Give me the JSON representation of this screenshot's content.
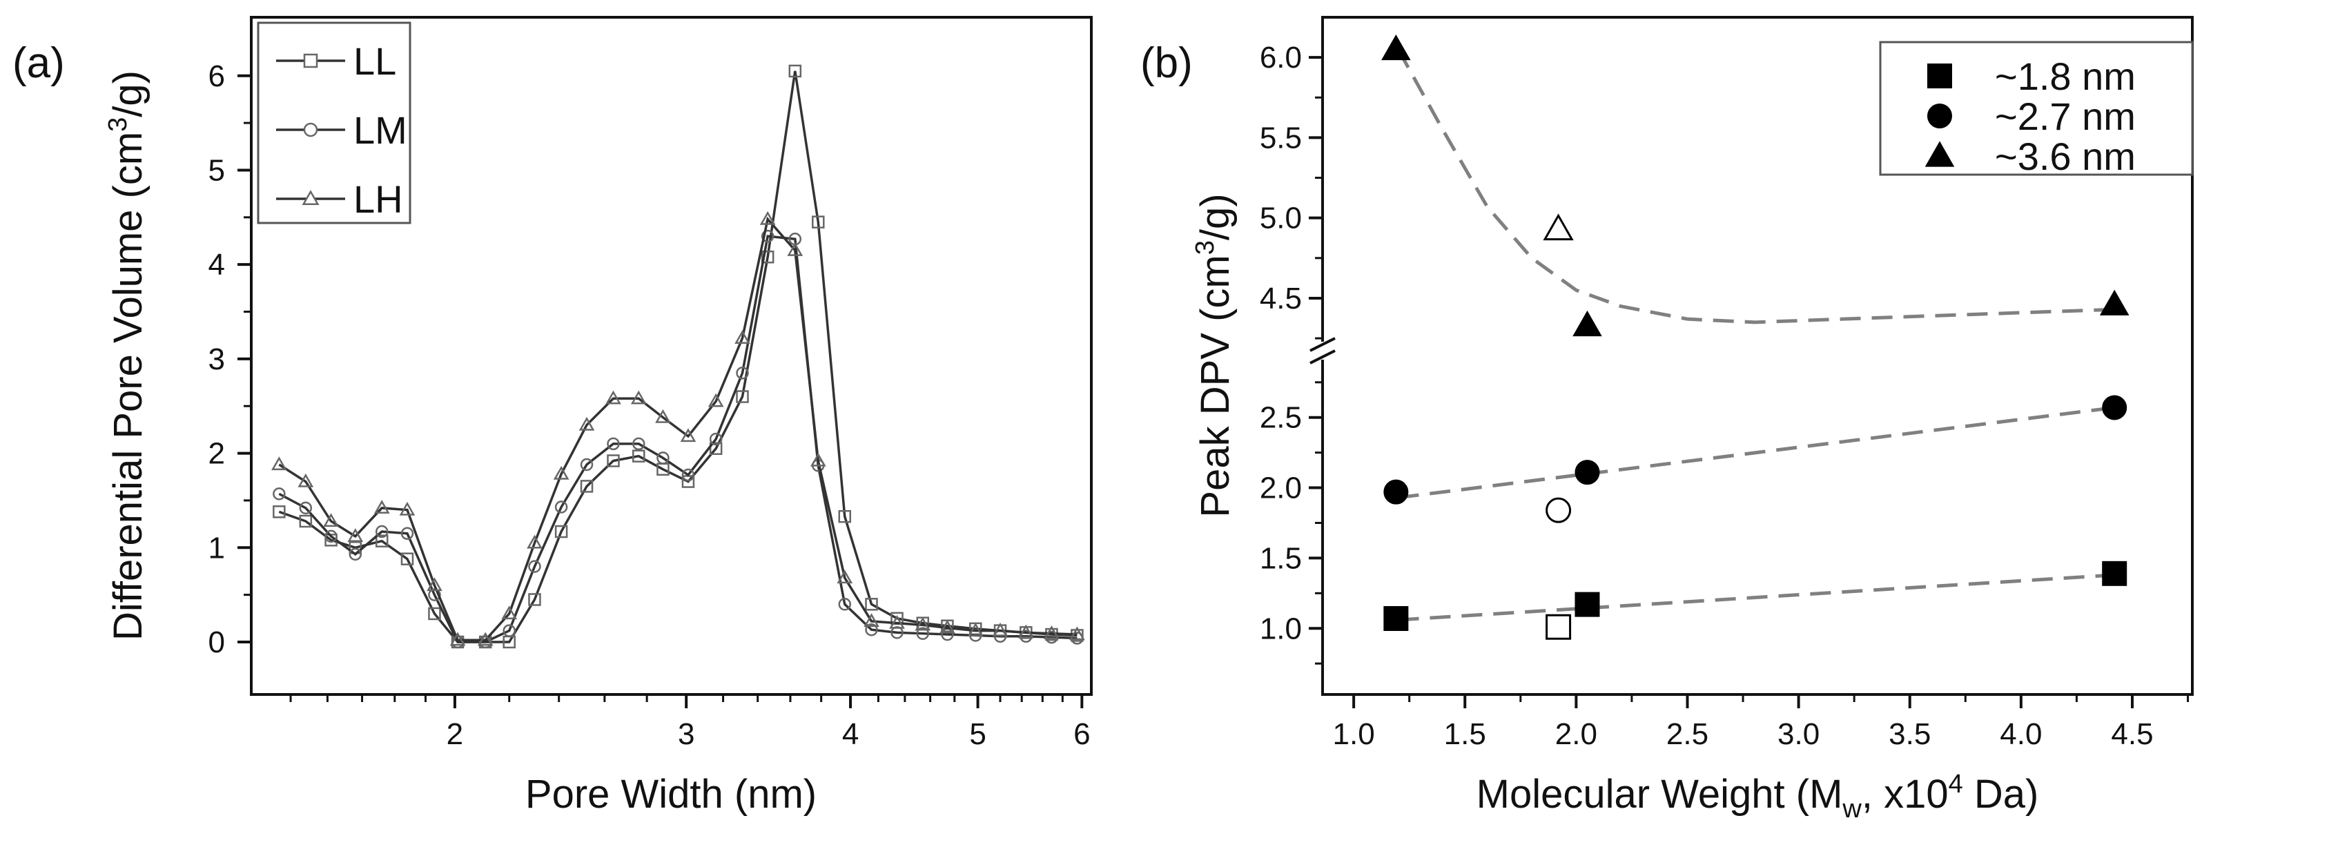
{
  "chart_data": [
    {
      "panel_label": "(a)",
      "type": "line",
      "xlabel": "Pore Width (nm)",
      "ylabel": "Differential Pore Volume (cm3/g)",
      "ylabel_parts": {
        "main": "Differential Pore Volume (cm",
        "sup": "3",
        "tail": "/g)"
      },
      "x_scale": "log",
      "xlim": [
        1.4,
        6.1
      ],
      "ylim": [
        -0.556,
        6.62
      ],
      "xticks": [
        2,
        3,
        4,
        5,
        6
      ],
      "xtick_labels": [
        "2",
        "3",
        "4",
        "5",
        "6"
      ],
      "yticks": [
        0,
        1,
        2,
        3,
        4,
        5,
        6
      ],
      "ytick_labels": [
        "0",
        "1",
        "2",
        "3",
        "4",
        "5",
        "6"
      ],
      "legend_position": "top-left",
      "x": [
        1.47,
        1.54,
        1.61,
        1.68,
        1.76,
        1.84,
        1.93,
        2.01,
        2.11,
        2.2,
        2.3,
        2.41,
        2.52,
        2.64,
        2.76,
        2.88,
        3.01,
        3.16,
        3.31,
        3.46,
        3.63,
        3.78,
        3.96,
        4.15,
        4.34,
        4.54,
        4.74,
        4.98,
        5.2,
        5.44,
        5.69,
        5.95
      ],
      "series": [
        {
          "name": "LL",
          "marker": "open-square",
          "values": [
            1.38,
            1.28,
            1.08,
            1.0,
            1.07,
            0.88,
            0.3,
            0,
            0,
            0,
            0.45,
            1.17,
            1.65,
            1.92,
            1.97,
            1.83,
            1.7,
            2.05,
            2.6,
            4.08,
            6.05,
            4.45,
            1.33,
            0.4,
            0.25,
            0.2,
            0.17,
            0.14,
            0.12,
            0.1,
            0.08,
            0.07
          ]
        },
        {
          "name": "LM",
          "marker": "open-circle",
          "values": [
            1.57,
            1.42,
            1.12,
            0.93,
            1.17,
            1.15,
            0.5,
            0,
            0,
            0.12,
            0.8,
            1.43,
            1.88,
            2.1,
            2.1,
            1.95,
            1.77,
            2.15,
            2.85,
            4.3,
            4.27,
            1.87,
            0.4,
            0.13,
            0.1,
            0.09,
            0.08,
            0.07,
            0.06,
            0.06,
            0.05,
            0.04
          ]
        },
        {
          "name": "LH",
          "marker": "open-triangle",
          "values": [
            1.88,
            1.7,
            1.28,
            1.12,
            1.42,
            1.4,
            0.6,
            0.02,
            0.02,
            0.3,
            1.05,
            1.78,
            2.3,
            2.58,
            2.58,
            2.38,
            2.18,
            2.55,
            3.22,
            4.48,
            4.15,
            1.92,
            0.68,
            0.22,
            0.2,
            0.18,
            0.15,
            0.12,
            0.12,
            0.1,
            0.09,
            0.08
          ]
        }
      ],
      "line_color": "#333333",
      "marker_color": "#666666"
    },
    {
      "panel_label": "(b)",
      "type": "scatter",
      "xlabel": "Molecular Weight (Mw, x104 Da)",
      "xlabel_parts": {
        "a": "Molecular Weight (M",
        "sub": "w",
        "b": ", x10",
        "sup": "4",
        "c": " Da)"
      },
      "ylabel": "Peak DPV (cm3/g)",
      "ylabel_parts": {
        "main": "Peak DPV (cm",
        "sup": "3",
        "tail": "/g)"
      },
      "xlim": [
        0.86,
        4.77
      ],
      "y_axis_break": true,
      "ylim_lower": [
        0.53,
        2.96
      ],
      "ylim_upper": [
        4.16,
        6.25
      ],
      "xticks": [
        1.0,
        1.5,
        2.0,
        2.5,
        3.0,
        3.5,
        4.0,
        4.5
      ],
      "xtick_labels": [
        "1.0",
        "1.5",
        "2.0",
        "2.5",
        "3.0",
        "3.5",
        "4.0",
        "4.5"
      ],
      "yticks_lower": [
        1.0,
        1.5,
        2.0,
        2.5
      ],
      "ytick_labels_lower": [
        "1.0",
        "1.5",
        "2.0",
        "2.5"
      ],
      "yticks_upper": [
        4.5,
        5.0,
        5.5,
        6.0
      ],
      "ytick_labels_upper": [
        "4.5",
        "5.0",
        "5.5",
        "6.0"
      ],
      "legend_position": "top-right",
      "series": [
        {
          "name": "~1.8 nm",
          "marker": "filled-square",
          "points": [
            [
              1.19,
              1.07
            ],
            [
              2.05,
              1.17
            ],
            [
              4.42,
              1.39
            ]
          ],
          "open_points": [
            [
              1.92,
              1.01
            ]
          ],
          "fit": [
            [
              1.2,
              1.06
            ],
            [
              4.42,
              1.38
            ]
          ]
        },
        {
          "name": "~2.7 nm",
          "marker": "filled-circle",
          "points": [
            [
              1.19,
              1.97
            ],
            [
              2.05,
              2.11
            ],
            [
              4.42,
              2.57
            ]
          ],
          "open_points": [
            [
              1.92,
              1.84
            ]
          ],
          "fit": [
            [
              1.2,
              1.93
            ],
            [
              4.42,
              2.57
            ]
          ]
        },
        {
          "name": "~3.6 nm",
          "marker": "filled-triangle",
          "points": [
            [
              1.19,
              6.05
            ],
            [
              2.05,
              4.33
            ],
            [
              4.42,
              4.46
            ]
          ],
          "open_points": [
            [
              1.92,
              4.93
            ]
          ],
          "fit": [
            [
              1.2,
              6.05
            ],
            [
              1.4,
              5.55
            ],
            [
              1.6,
              5.07
            ],
            [
              1.8,
              4.75
            ],
            [
              2.0,
              4.55
            ],
            [
              2.2,
              4.45
            ],
            [
              2.5,
              4.37
            ],
            [
              2.8,
              4.35
            ],
            [
              3.2,
              4.37
            ],
            [
              3.8,
              4.4
            ],
            [
              4.42,
              4.43
            ]
          ]
        }
      ],
      "fit_color": "#808080",
      "marker_color": "#000000"
    }
  ]
}
